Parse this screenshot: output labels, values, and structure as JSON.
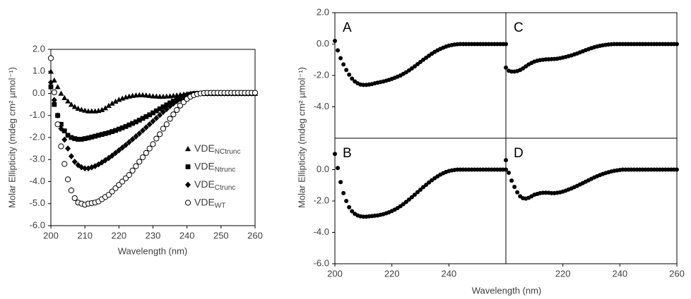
{
  "chart_data": [
    {
      "type": "scatter",
      "xlabel": "Wavelength (nm)",
      "ylabel": "Molar Ellipticity (mdeg cm² µmol⁻¹)",
      "xlim": [
        200,
        260
      ],
      "ylim": [
        -6,
        2
      ],
      "xticks": [
        200,
        210,
        220,
        230,
        240,
        250,
        260
      ],
      "yticks": [
        {
          "value": 2,
          "label": "2.0"
        },
        {
          "value": 1,
          "label": "1.0"
        },
        {
          "value": 0,
          "label": "0.0"
        },
        {
          "value": -1,
          "label": "-1.0"
        },
        {
          "value": -2,
          "label": "-2.0"
        },
        {
          "value": -3,
          "label": "-3.0"
        },
        {
          "value": -4,
          "label": "-4.0"
        },
        {
          "value": -5,
          "label": "-5.0"
        },
        {
          "value": -6,
          "label": "-6.0"
        }
      ],
      "legend": "center-right",
      "x": [
        200,
        201,
        202,
        203,
        204,
        205,
        206,
        207,
        208,
        209,
        210,
        211,
        212,
        213,
        214,
        215,
        216,
        217,
        218,
        219,
        220,
        221,
        222,
        223,
        224,
        225,
        226,
        227,
        228,
        229,
        230,
        231,
        232,
        233,
        234,
        235,
        236,
        237,
        238,
        239,
        240,
        241,
        242,
        243,
        244,
        245,
        246,
        247,
        248,
        249,
        250,
        251,
        252,
        253,
        254,
        255,
        256,
        257,
        258,
        259,
        260
      ],
      "series": [
        {
          "name": "VDE",
          "subscript": "NCtrunc",
          "marker": "triangle",
          "color": "#000000",
          "values": [
            1.0,
            0.6,
            0.3,
            0.0,
            -0.2,
            -0.35,
            -0.5,
            -0.6,
            -0.68,
            -0.73,
            -0.77,
            -0.8,
            -0.8,
            -0.8,
            -0.78,
            -0.74,
            -0.66,
            -0.55,
            -0.45,
            -0.36,
            -0.28,
            -0.22,
            -0.17,
            -0.13,
            -0.1,
            -0.08,
            -0.07,
            -0.07,
            -0.08,
            -0.1,
            -0.12,
            -0.13,
            -0.14,
            -0.14,
            -0.13,
            -0.12,
            -0.1,
            -0.08,
            -0.06,
            -0.04,
            -0.02,
            0,
            0,
            0,
            0,
            0,
            0,
            0,
            0,
            0,
            0,
            0,
            0,
            0,
            0,
            0,
            0,
            0,
            0,
            0,
            0
          ]
        },
        {
          "name": "VDE",
          "subscript": "Ntrunc",
          "marker": "square",
          "color": "#000000",
          "values": [
            0.3,
            -0.5,
            -1.0,
            -1.4,
            -1.7,
            -1.9,
            -2.0,
            -2.05,
            -2.08,
            -2.08,
            -2.05,
            -2.02,
            -1.98,
            -1.94,
            -1.9,
            -1.86,
            -1.82,
            -1.78,
            -1.73,
            -1.68,
            -1.62,
            -1.56,
            -1.5,
            -1.43,
            -1.36,
            -1.29,
            -1.21,
            -1.13,
            -1.05,
            -0.97,
            -0.88,
            -0.79,
            -0.7,
            -0.61,
            -0.52,
            -0.43,
            -0.35,
            -0.27,
            -0.2,
            -0.13,
            -0.08,
            -0.04,
            -0.01,
            0,
            0,
            0,
            0,
            0,
            0,
            0,
            0,
            0,
            0,
            0,
            0,
            0,
            0,
            0,
            0,
            0,
            0
          ]
        },
        {
          "name": "VDE",
          "subscript": "Ctrunc",
          "marker": "diamond",
          "color": "#000000",
          "values": [
            0.5,
            -0.3,
            -1.0,
            -1.6,
            -2.1,
            -2.5,
            -2.85,
            -3.1,
            -3.25,
            -3.35,
            -3.4,
            -3.4,
            -3.35,
            -3.3,
            -3.22,
            -3.13,
            -3.03,
            -2.93,
            -2.82,
            -2.7,
            -2.58,
            -2.46,
            -2.34,
            -2.21,
            -2.08,
            -1.95,
            -1.82,
            -1.68,
            -1.54,
            -1.4,
            -1.26,
            -1.12,
            -0.98,
            -0.84,
            -0.71,
            -0.58,
            -0.46,
            -0.35,
            -0.25,
            -0.16,
            -0.09,
            -0.04,
            -0.01,
            0,
            0,
            0,
            0,
            0,
            0,
            0,
            0,
            0,
            0,
            0,
            0,
            0,
            0,
            0,
            0,
            0,
            0
          ]
        },
        {
          "name": "VDE",
          "subscript": "WT",
          "marker": "open-circle",
          "color": "#000000",
          "values": [
            1.6,
            0.05,
            -1.4,
            -2.4,
            -3.2,
            -3.9,
            -4.4,
            -4.75,
            -4.95,
            -5.0,
            -5.05,
            -5.0,
            -4.98,
            -4.95,
            -4.9,
            -4.8,
            -4.7,
            -4.6,
            -4.45,
            -4.3,
            -4.15,
            -4.0,
            -3.85,
            -3.7,
            -3.5,
            -3.3,
            -3.1,
            -2.9,
            -2.7,
            -2.5,
            -2.3,
            -2.05,
            -1.85,
            -1.6,
            -1.4,
            -1.15,
            -0.95,
            -0.75,
            -0.55,
            -0.4,
            -0.25,
            -0.15,
            -0.08,
            -0.03,
            0,
            0.02,
            0.03,
            0.03,
            0.03,
            0.03,
            0.03,
            0.03,
            0.03,
            0.03,
            0.03,
            0.03,
            0.03,
            0.03,
            0.03,
            0.03,
            0.03
          ]
        }
      ]
    },
    {
      "type": "panels",
      "xlabel": "Wavelength (nm)",
      "ylabel": "Molar Ellipticity (mdeg cm² µmol⁻¹)",
      "xlim": [
        200,
        260
      ],
      "ylim": [
        -6,
        2
      ],
      "color": "#000000",
      "x": [
        200,
        201,
        202,
        203,
        204,
        205,
        206,
        207,
        208,
        209,
        210,
        211,
        212,
        213,
        214,
        215,
        216,
        217,
        218,
        219,
        220,
        221,
        222,
        223,
        224,
        225,
        226,
        227,
        228,
        229,
        230,
        231,
        232,
        233,
        234,
        235,
        236,
        237,
        238,
        239,
        240,
        241,
        242,
        243,
        244,
        245,
        246,
        247,
        248,
        249,
        250,
        251,
        252,
        253,
        254,
        255,
        256,
        257,
        258,
        259,
        260
      ],
      "panels": [
        {
          "label": "A",
          "yticks": [
            {
              "value": 2,
              "label": "2.0"
            },
            {
              "value": 0,
              "label": "0.0"
            },
            {
              "value": -2,
              "label": "-2.0"
            },
            {
              "value": -4,
              "label": "-4.0"
            }
          ],
          "xticks": [],
          "values": [
            0.2,
            -0.4,
            -0.9,
            -1.3,
            -1.65,
            -1.95,
            -2.2,
            -2.38,
            -2.5,
            -2.58,
            -2.6,
            -2.6,
            -2.58,
            -2.55,
            -2.5,
            -2.46,
            -2.42,
            -2.38,
            -2.33,
            -2.28,
            -2.22,
            -2.15,
            -2.08,
            -2.0,
            -1.9,
            -1.8,
            -1.68,
            -1.55,
            -1.42,
            -1.28,
            -1.14,
            -1.0,
            -0.87,
            -0.74,
            -0.62,
            -0.5,
            -0.4,
            -0.31,
            -0.23,
            -0.16,
            -0.1,
            -0.06,
            -0.03,
            -0.01,
            0,
            0,
            0,
            0,
            0,
            0,
            0,
            0,
            0,
            0,
            0,
            0,
            0,
            0,
            0,
            0,
            0
          ]
        },
        {
          "label": "B",
          "yticks": [
            {
              "value": 0,
              "label": "0.0"
            },
            {
              "value": -2,
              "label": "-2.0"
            },
            {
              "value": -4,
              "label": "-4.0"
            },
            {
              "value": -6,
              "label": "-6.0"
            }
          ],
          "xticks": [
            200,
            220,
            240
          ],
          "values": [
            1.0,
            0.1,
            -0.8,
            -1.5,
            -2.0,
            -2.4,
            -2.65,
            -2.82,
            -2.92,
            -2.98,
            -3.0,
            -3.0,
            -2.98,
            -2.96,
            -2.94,
            -2.92,
            -2.88,
            -2.84,
            -2.78,
            -2.72,
            -2.64,
            -2.55,
            -2.45,
            -2.33,
            -2.2,
            -2.06,
            -1.91,
            -1.76,
            -1.6,
            -1.44,
            -1.28,
            -1.12,
            -0.97,
            -0.82,
            -0.68,
            -0.55,
            -0.43,
            -0.32,
            -0.23,
            -0.15,
            -0.09,
            -0.05,
            -0.02,
            0,
            0,
            0,
            0,
            0,
            0,
            0,
            0,
            0,
            0,
            0,
            0,
            0,
            0,
            0,
            0,
            0,
            0
          ]
        },
        {
          "label": "C",
          "yticks": [],
          "xticks": [],
          "values": [
            -1.5,
            -1.7,
            -1.75,
            -1.75,
            -1.72,
            -1.65,
            -1.55,
            -1.42,
            -1.3,
            -1.2,
            -1.12,
            -1.06,
            -1.02,
            -1.0,
            -0.98,
            -0.97,
            -0.96,
            -0.95,
            -0.93,
            -0.9,
            -0.86,
            -0.82,
            -0.77,
            -0.72,
            -0.66,
            -0.6,
            -0.53,
            -0.46,
            -0.39,
            -0.32,
            -0.26,
            -0.2,
            -0.15,
            -0.11,
            -0.08,
            -0.05,
            -0.03,
            -0.01,
            0,
            0,
            0,
            0,
            0,
            0,
            0,
            0,
            0,
            0,
            0,
            0,
            0,
            0,
            0,
            0,
            0,
            0,
            0,
            0,
            0,
            0,
            0
          ]
        },
        {
          "label": "D",
          "yticks": [],
          "xticks": [
            220,
            240,
            260
          ],
          "values": [
            0.6,
            -0.2,
            -0.7,
            -1.1,
            -1.45,
            -1.7,
            -1.82,
            -1.85,
            -1.8,
            -1.7,
            -1.6,
            -1.55,
            -1.5,
            -1.48,
            -1.47,
            -1.48,
            -1.5,
            -1.5,
            -1.48,
            -1.45,
            -1.4,
            -1.34,
            -1.27,
            -1.2,
            -1.12,
            -1.04,
            -0.95,
            -0.86,
            -0.77,
            -0.68,
            -0.59,
            -0.5,
            -0.42,
            -0.35,
            -0.28,
            -0.22,
            -0.17,
            -0.12,
            -0.08,
            -0.05,
            -0.02,
            0,
            0,
            0,
            0,
            0,
            0,
            0,
            0,
            0,
            0,
            0,
            0,
            0,
            0,
            0,
            0,
            0,
            0,
            0,
            0
          ]
        }
      ]
    }
  ]
}
